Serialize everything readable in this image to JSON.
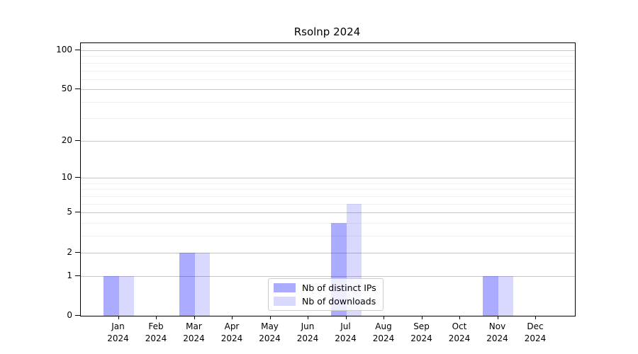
{
  "title": "Rsolnp 2024",
  "colors": {
    "series_distinct_ips": "rgba(0,0,255,0.33)",
    "series_downloads": "rgba(0,0,255,0.15)",
    "major_grid": "#c6c6c6",
    "minor_grid": "#efefef",
    "axis": "#000000"
  },
  "legend": {
    "items": [
      {
        "label": "Nb of distinct IPs",
        "color": "rgba(0,0,255,0.33)"
      },
      {
        "label": "Nb of downloads",
        "color": "rgba(0,0,255,0.15)"
      }
    ]
  },
  "chart_data": {
    "type": "bar",
    "title": "Rsolnp 2024",
    "categories": [
      "Jan",
      "Feb",
      "Mar",
      "Apr",
      "May",
      "Jun",
      "Jul",
      "Aug",
      "Sep",
      "Oct",
      "Nov",
      "Dec"
    ],
    "category_year": "2024",
    "series": [
      {
        "name": "Nb of distinct IPs",
        "color": "rgba(0,0,255,0.33)",
        "values": [
          1,
          0,
          2,
          0,
          0,
          0,
          4,
          0,
          0,
          0,
          1,
          0
        ]
      },
      {
        "name": "Nb of downloads",
        "color": "rgba(0,0,255,0.15)",
        "values": [
          1,
          0,
          2,
          0,
          0,
          0,
          6,
          0,
          0,
          0,
          1,
          0
        ]
      }
    ],
    "xlabel": "",
    "ylabel": "",
    "yscale": "log1p",
    "ylim": [
      0,
      113
    ],
    "yticks": [
      0,
      1,
      2,
      5,
      10,
      20,
      50,
      100
    ],
    "minor_yticks": [
      3,
      4,
      6,
      7,
      8,
      9,
      30,
      40,
      60,
      70,
      80,
      90
    ],
    "grid": "horizontal",
    "legend_position": "bottom-center"
  }
}
